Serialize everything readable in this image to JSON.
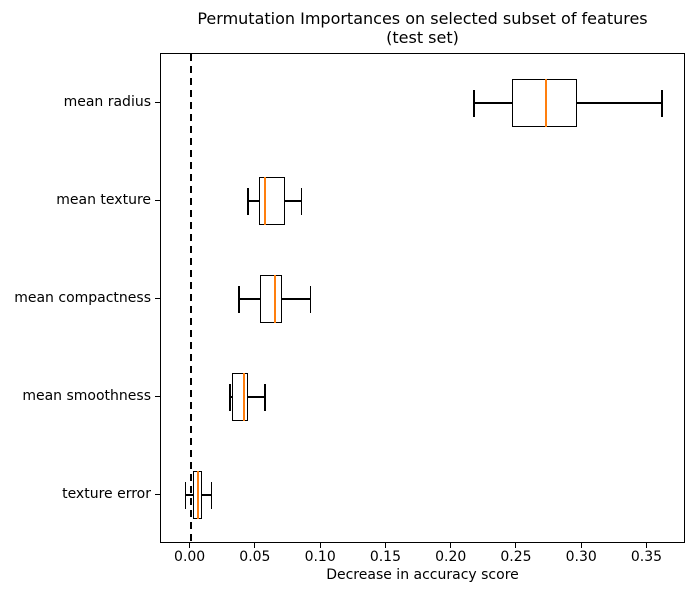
{
  "title": {
    "line1": "Permutation Importances on selected subset of features",
    "line2": "(test set)"
  },
  "chart_data": {
    "type": "boxplot",
    "orientation": "horizontal",
    "title": "Permutation Importances on selected subset of features (test set)",
    "xlabel": "Decrease in accuracy score",
    "ylabel": "",
    "xlim": [
      -0.0227,
      0.3795
    ],
    "x_ticks": [
      0.0,
      0.05,
      0.1,
      0.15,
      0.2,
      0.25,
      0.3,
      0.35
    ],
    "x_tick_labels": [
      "0.00",
      "0.05",
      "0.10",
      "0.15",
      "0.20",
      "0.25",
      "0.30",
      "0.35"
    ],
    "categories": [
      "mean radius",
      "mean texture",
      "mean compactness",
      "mean smoothness",
      "texture error"
    ],
    "boxes": [
      {
        "label": "mean radius",
        "whislo": 0.217,
        "q1": 0.246,
        "med": 0.272,
        "q3": 0.296,
        "whishi": 0.361
      },
      {
        "label": "mean texture",
        "whislo": 0.044,
        "q1": 0.052,
        "med": 0.057,
        "q3": 0.072,
        "whishi": 0.085
      },
      {
        "label": "mean compactness",
        "whislo": 0.037,
        "q1": 0.053,
        "med": 0.065,
        "q3": 0.07,
        "whishi": 0.092
      },
      {
        "label": "mean smoothness",
        "whislo": 0.03,
        "q1": 0.032,
        "med": 0.041,
        "q3": 0.044,
        "whishi": 0.057
      },
      {
        "label": "texture error",
        "whislo": -0.004,
        "q1": 0.002,
        "med": 0.006,
        "q3": 0.009,
        "whishi": 0.016
      }
    ],
    "reference_line": {
      "x": 0,
      "style": "dashed",
      "color": "#000000"
    },
    "median_color": "#ff7f0e",
    "box_color": "#000000",
    "grid": false,
    "legend": false
  },
  "colors": {
    "median": "#ff7f0e",
    "line": "#000000",
    "background": "#ffffff"
  }
}
